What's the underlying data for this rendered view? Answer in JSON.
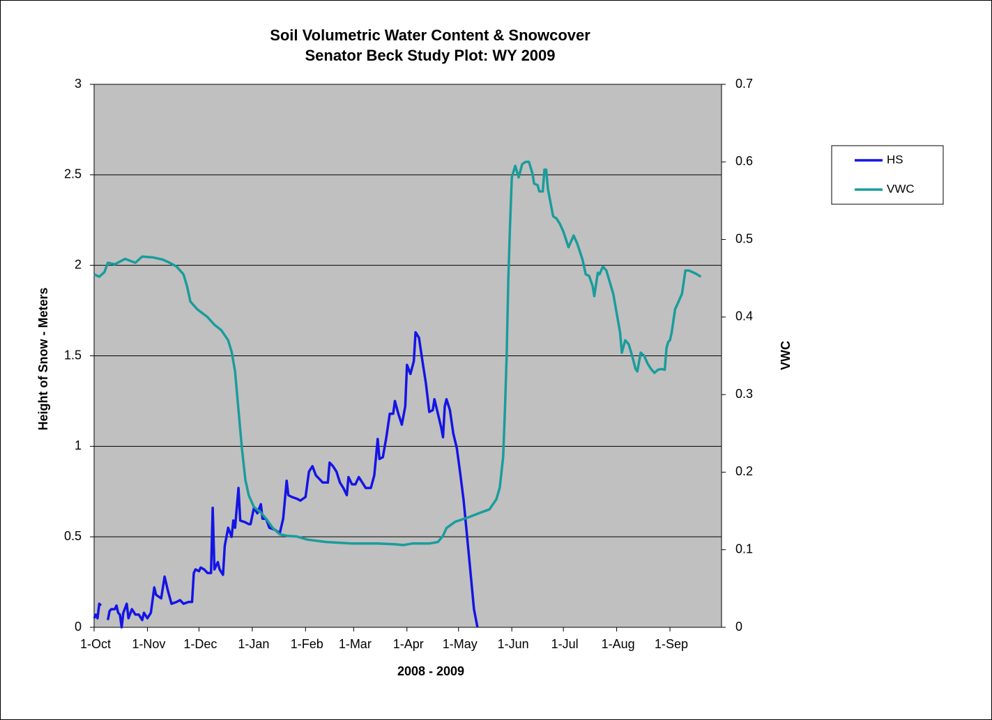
{
  "chart_data": {
    "type": "line",
    "title": "Soil Volumetric Water Content & Snowcover",
    "subtitle": "Senator Beck Study Plot: WY 2009",
    "x_label": "2008 - 2009",
    "y_label": "Height of Snow - Meters",
    "y2_label": "VWC",
    "xlim": [
      0,
      365
    ],
    "xticks": [
      {
        "value": 0,
        "label": "1-Oct"
      },
      {
        "value": 31,
        "label": "1-Nov"
      },
      {
        "value": 61,
        "label": "1-Dec"
      },
      {
        "value": 92,
        "label": "1-Jan"
      },
      {
        "value": 123,
        "label": "1-Feb"
      },
      {
        "value": 151,
        "label": "1-Mar"
      },
      {
        "value": 182,
        "label": "1-Apr"
      },
      {
        "value": 212,
        "label": "1-May"
      },
      {
        "value": 243,
        "label": "1-Jun"
      },
      {
        "value": 273,
        "label": "1-Jul"
      },
      {
        "value": 304,
        "label": "1-Aug"
      },
      {
        "value": 335,
        "label": "1-Sep"
      }
    ],
    "ylim": [
      0,
      3
    ],
    "yticks": [
      0,
      0.5,
      1,
      1.5,
      2,
      2.5,
      3
    ],
    "y2lim": [
      0,
      0.7
    ],
    "y2ticks": [
      0,
      0.1,
      0.2,
      0.3,
      0.4,
      0.5,
      0.6,
      0.7
    ],
    "grid": true,
    "legend": "right",
    "series": [
      {
        "name": "HS",
        "color": "#1414e6",
        "x": [
          0,
          1,
          2,
          3,
          4,
          5,
          8,
          9,
          10,
          12,
          13,
          14,
          15,
          16,
          17,
          19,
          20,
          22,
          24,
          26,
          28,
          29,
          31,
          33,
          35,
          36,
          39,
          41,
          43,
          45,
          48,
          50,
          52,
          55,
          57,
          58,
          59,
          61,
          62,
          64,
          66,
          68,
          69,
          70,
          72,
          73,
          75,
          76,
          78,
          80,
          81,
          82,
          84,
          85,
          88,
          90,
          91,
          93,
          95,
          97,
          98,
          100,
          102,
          105,
          108,
          110,
          112,
          113,
          115,
          118,
          120,
          123,
          125,
          127,
          129,
          131,
          133,
          136,
          137,
          139,
          141,
          143,
          145,
          147,
          148,
          150,
          152,
          154,
          156,
          158,
          161,
          163,
          165,
          166,
          168,
          170,
          172,
          174,
          175,
          177,
          179,
          181,
          182,
          184,
          186,
          187,
          189,
          191,
          193,
          195,
          197,
          198,
          200,
          202,
          203,
          204,
          205,
          207,
          209,
          211,
          213,
          215,
          217,
          219,
          221,
          223
        ],
        "values": [
          0.05,
          0.07,
          0.05,
          0.13,
          0.12,
          null,
          0.04,
          0.09,
          0.1,
          0.1,
          0.12,
          0.08,
          0.07,
          0,
          0.08,
          0.13,
          0.05,
          0.1,
          0.07,
          0.07,
          0.04,
          0.08,
          0.05,
          0.08,
          0.22,
          0.18,
          0.16,
          0.28,
          0.2,
          0.13,
          0.14,
          0.15,
          0.13,
          0.14,
          0.14,
          0.3,
          0.32,
          0.31,
          0.33,
          0.32,
          0.3,
          0.3,
          0.66,
          0.32,
          0.36,
          0.32,
          0.29,
          0.45,
          0.55,
          0.5,
          0.59,
          0.55,
          0.77,
          0.59,
          0.58,
          0.57,
          0.57,
          0.66,
          0.63,
          0.68,
          0.6,
          0.6,
          0.55,
          0.54,
          0.52,
          0.6,
          0.81,
          0.73,
          0.72,
          0.71,
          0.7,
          0.72,
          0.86,
          0.89,
          0.84,
          0.82,
          0.8,
          0.8,
          0.91,
          0.89,
          0.86,
          0.8,
          0.77,
          0.73,
          0.83,
          0.79,
          0.79,
          0.83,
          0.8,
          0.77,
          0.77,
          0.84,
          1.04,
          0.93,
          0.94,
          1.05,
          1.18,
          1.18,
          1.25,
          1.18,
          1.12,
          1.22,
          1.45,
          1.4,
          1.47,
          1.63,
          1.6,
          1.47,
          1.35,
          1.19,
          1.2,
          1.26,
          1.18,
          1.1,
          1.05,
          1.22,
          1.26,
          1.2,
          1.07,
          0.99,
          0.85,
          0.7,
          0.5,
          0.3,
          0.1,
          0
        ]
      },
      {
        "name": "VWC",
        "color": "#1a9c9c",
        "axis": "y2",
        "x": [
          0,
          3,
          6,
          8,
          12,
          18,
          24,
          28,
          34,
          40,
          44,
          48,
          52,
          54,
          56,
          60,
          66,
          70,
          74,
          78,
          80,
          82,
          84,
          86,
          88,
          90,
          93,
          97,
          100,
          104,
          108,
          112,
          118,
          124,
          135,
          150,
          165,
          175,
          180,
          185,
          195,
          200,
          203,
          205,
          210,
          218,
          225,
          230,
          234,
          236,
          238,
          239,
          240,
          241,
          242,
          243,
          245,
          247,
          249,
          251,
          253,
          255,
          256,
          258,
          259,
          261,
          262,
          263,
          264,
          267,
          269,
          271,
          273,
          276,
          279,
          281,
          284,
          286,
          288,
          290,
          291,
          293,
          294,
          296,
          298,
          300,
          302,
          304,
          306,
          307,
          309,
          311,
          313,
          315,
          316,
          318,
          320,
          322,
          324,
          326,
          328,
          330,
          332,
          333,
          334,
          335,
          336,
          338,
          340,
          342,
          344,
          346,
          350,
          353
        ],
        "values": [
          0.455,
          0.452,
          0.458,
          0.47,
          0.468,
          0.475,
          0.47,
          0.478,
          0.477,
          0.474,
          0.47,
          0.465,
          0.455,
          0.44,
          0.42,
          0.41,
          0.4,
          0.39,
          0.383,
          0.37,
          0.355,
          0.33,
          0.28,
          0.23,
          0.19,
          0.17,
          0.155,
          0.148,
          0.14,
          0.128,
          0.12,
          0.118,
          0.117,
          0.113,
          0.11,
          0.108,
          0.108,
          0.107,
          0.106,
          0.108,
          0.108,
          0.11,
          0.118,
          0.128,
          0.136,
          0.142,
          0.148,
          0.152,
          0.165,
          0.18,
          0.22,
          0.28,
          0.35,
          0.45,
          0.52,
          0.58,
          0.595,
          0.58,
          0.597,
          0.6,
          0.6,
          0.585,
          0.572,
          0.57,
          0.562,
          0.562,
          0.59,
          0.59,
          0.565,
          0.53,
          0.527,
          0.52,
          0.51,
          0.49,
          0.505,
          0.495,
          0.475,
          0.455,
          0.453,
          0.44,
          0.427,
          0.457,
          0.455,
          0.465,
          0.46,
          0.445,
          0.43,
          0.405,
          0.38,
          0.354,
          0.37,
          0.365,
          0.35,
          0.333,
          0.33,
          0.354,
          0.35,
          0.34,
          0.333,
          0.328,
          0.332,
          0.333,
          0.332,
          0.36,
          0.368,
          0.37,
          0.38,
          0.41,
          0.42,
          0.43,
          0.46,
          0.46,
          0.456,
          0.452
        ]
      }
    ]
  }
}
